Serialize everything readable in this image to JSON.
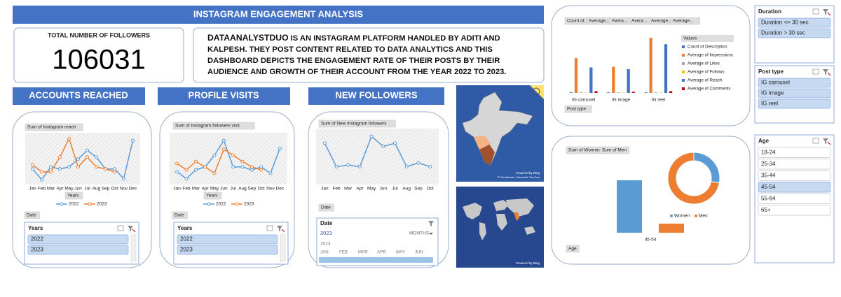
{
  "header": {
    "title": "INSTAGRAM ENGAGEMENT ANALYSIS"
  },
  "kpi": {
    "label": "TOTAL NUMBER OF FOLLOWERS",
    "value": 106031
  },
  "description": {
    "brand": "DATAANALYSTDUO",
    "text": " IS AN INSTAGRAM PLATFORM HANDLED BY ADITI AND KALPESH. THEY POST CONTENT RELATED TO DATA ANALYTICS AND THIS DASHBOARD DEPICTS THE ENGAGEMENT RATE OF THEIR POSTS BY THEIR AUDIENCE AND GROWTH OF THEIR ACCOUNT FROM THE YEAR 2022 TO 2023."
  },
  "sections": [
    "ACCOUNTS REACHED",
    "PROFILE VISITS",
    "NEW FOLLOWERS"
  ],
  "chart_data": [
    {
      "type": "line",
      "buttons": [
        "Sum of Instagram reach",
        "Years",
        "Date"
      ],
      "categories": [
        "Jan",
        "Feb",
        "Mar",
        "Apr",
        "May",
        "Jun",
        "Jul",
        "Aug",
        "Sep",
        "Oct",
        "Nov",
        "Dec"
      ],
      "ylim": [
        0,
        100
      ],
      "series": [
        {
          "name": "2022",
          "color": "#5b9bd5",
          "values": [
            29,
            7,
            33,
            29,
            33,
            49,
            67,
            53,
            29,
            29,
            9,
            87
          ]
        },
        {
          "name": "2023",
          "color": "#ed7d31",
          "values": [
            37,
            23,
            23,
            53,
            91,
            33,
            53,
            33,
            29,
            23,
            null,
            null
          ]
        }
      ]
    },
    {
      "type": "line",
      "buttons": [
        "Sum of Instagram followers visit",
        "Years",
        "Date"
      ],
      "categories": [
        "Jan",
        "Feb",
        "Mar",
        "Apr",
        "May",
        "Jun",
        "Jul",
        "Aug",
        "Sep",
        "Oct",
        "Nov",
        "Dec"
      ],
      "ylim": [
        0,
        100
      ],
      "series": [
        {
          "name": "2022",
          "color": "#5b9bd5",
          "values": [
            23,
            9,
            27,
            33,
            57,
            87,
            33,
            33,
            27,
            33,
            20,
            71
          ]
        },
        {
          "name": "2023",
          "color": "#ed7d31",
          "values": [
            40,
            27,
            44,
            33,
            20,
            69,
            57,
            44,
            33,
            27,
            null,
            null
          ]
        }
      ]
    },
    {
      "type": "line",
      "buttons": [
        "Sum of New Instagram followers",
        "Date"
      ],
      "categories": [
        "Jan",
        "Feb",
        "Mar",
        "Apr",
        "May",
        "Jun",
        "Jul",
        "Aug",
        "Sep",
        "Oct"
      ],
      "ylim": [
        0,
        100
      ],
      "color": "#5b9bd5",
      "values": [
        75,
        31,
        34,
        31,
        88,
        69,
        75,
        31,
        38,
        31
      ]
    },
    {
      "type": "bar",
      "buttons": [
        "Count of...",
        "Average...",
        "Avera...",
        "Avera...",
        "Average...",
        "Average...",
        "Post type"
      ],
      "legend_title": "Values",
      "categories": [
        "IG carousel",
        "IG image",
        "IG reel"
      ],
      "ylim": [
        0,
        100
      ],
      "series": [
        {
          "name": "Count of Description",
          "color": "#4472c4",
          "values": [
            1,
            1,
            1
          ]
        },
        {
          "name": "Average of Impressions",
          "color": "#ed7d31",
          "values": [
            60,
            45,
            95
          ]
        },
        {
          "name": "Average of Likes",
          "color": "#a5a5a5",
          "values": [
            1,
            1,
            1
          ]
        },
        {
          "name": "Average of Follows",
          "color": "#ffc000",
          "values": [
            0.5,
            0.5,
            0.5
          ]
        },
        {
          "name": "Average of Reach",
          "color": "#4472c4",
          "values": [
            44,
            41,
            84
          ]
        },
        {
          "name": "Average of Comments",
          "color": "#c00000",
          "values": [
            3,
            2,
            3
          ]
        }
      ]
    },
    {
      "type": "bar",
      "buttons": [
        "Sum of Women",
        "Sum of Men",
        "Age"
      ],
      "categories": [
        "45-54"
      ],
      "ylim": [
        0,
        100
      ],
      "series": [
        {
          "name": "Women",
          "color": "#5b9bd5",
          "values": [
            75
          ]
        },
        {
          "name": "Men",
          "color": "#ed7d31",
          "values": [
            13
          ]
        }
      ]
    },
    {
      "type": "donut",
      "values": [
        28,
        72
      ],
      "colors": [
        "#5b9bd5",
        "#ed7d31"
      ]
    }
  ],
  "timeline": {
    "title": "Date",
    "year": "2023",
    "period": "MONTHS",
    "year_label": "2023",
    "months": [
      "JAN",
      "FEB",
      "MAR",
      "APR",
      "MAY",
      "JUN"
    ]
  },
  "maps": [
    {
      "credit": "Powered by Bing",
      "attribution": "© GeoNames, Microsoft, TomTom"
    },
    {
      "credit": "Powered by Bing"
    }
  ],
  "slicers": [
    {
      "title": "Years",
      "items": [
        "2022",
        "2023"
      ],
      "selected": [
        true,
        true
      ]
    },
    {
      "title": "Years",
      "items": [
        "2022",
        "2023"
      ],
      "selected": [
        true,
        true
      ]
    },
    {
      "title": "Duration",
      "items": [
        "Duration <= 30 sec",
        "Duration > 30 sec"
      ],
      "selected": [
        true,
        true
      ]
    },
    {
      "title": "Post type",
      "items": [
        "IG carousel",
        "IG image",
        "IG reel"
      ],
      "selected": [
        true,
        true,
        true
      ]
    },
    {
      "title": "Age",
      "items": [
        "18-24",
        "25-34",
        "35-44",
        "45-54",
        "55-64",
        "65+"
      ],
      "selected": [
        false,
        false,
        false,
        true,
        false,
        false
      ]
    }
  ]
}
